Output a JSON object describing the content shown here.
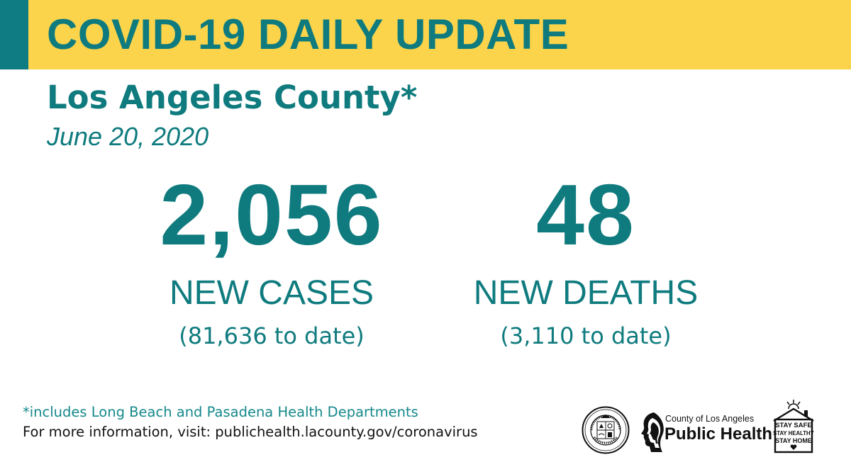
{
  "header": {
    "title": "COVID-19 DAILY UPDATE"
  },
  "subtitle": {
    "region": "Los Angeles County*",
    "date": "June 20, 2020"
  },
  "stats": {
    "cases": {
      "number": "2,056",
      "label": "NEW CASES",
      "to_date": "(81,636 to date)"
    },
    "deaths": {
      "number": "48",
      "label": "NEW DEATHS",
      "to_date": "(3,110 to date)"
    }
  },
  "footer": {
    "footnote": "*includes Long Beach and Pasadena Health Departments",
    "more_info": "For more information, visit: publichealth.lacounty.gov/coronavirus"
  },
  "logos": {
    "seal": {
      "icon": "county-seal-icon",
      "text_top": "COUNTY OF LOS ANGELES",
      "text_bottom": "CALIFORNIA"
    },
    "public_health": {
      "icon": "public-health-heads-icon",
      "small": "County of Los Angeles",
      "big": "Public Health"
    },
    "stay_safe": {
      "icon": "house-heart-icon",
      "lines": [
        "STAY SAFE",
        "STAY HEALTHY",
        "STAY HOME"
      ]
    }
  },
  "colors": {
    "teal": "#0f7b7e",
    "teal_dark": "#0e7c82",
    "banner_yellow": "#fbd44b",
    "footnote_teal": "#15888b",
    "text_black": "#111111"
  }
}
